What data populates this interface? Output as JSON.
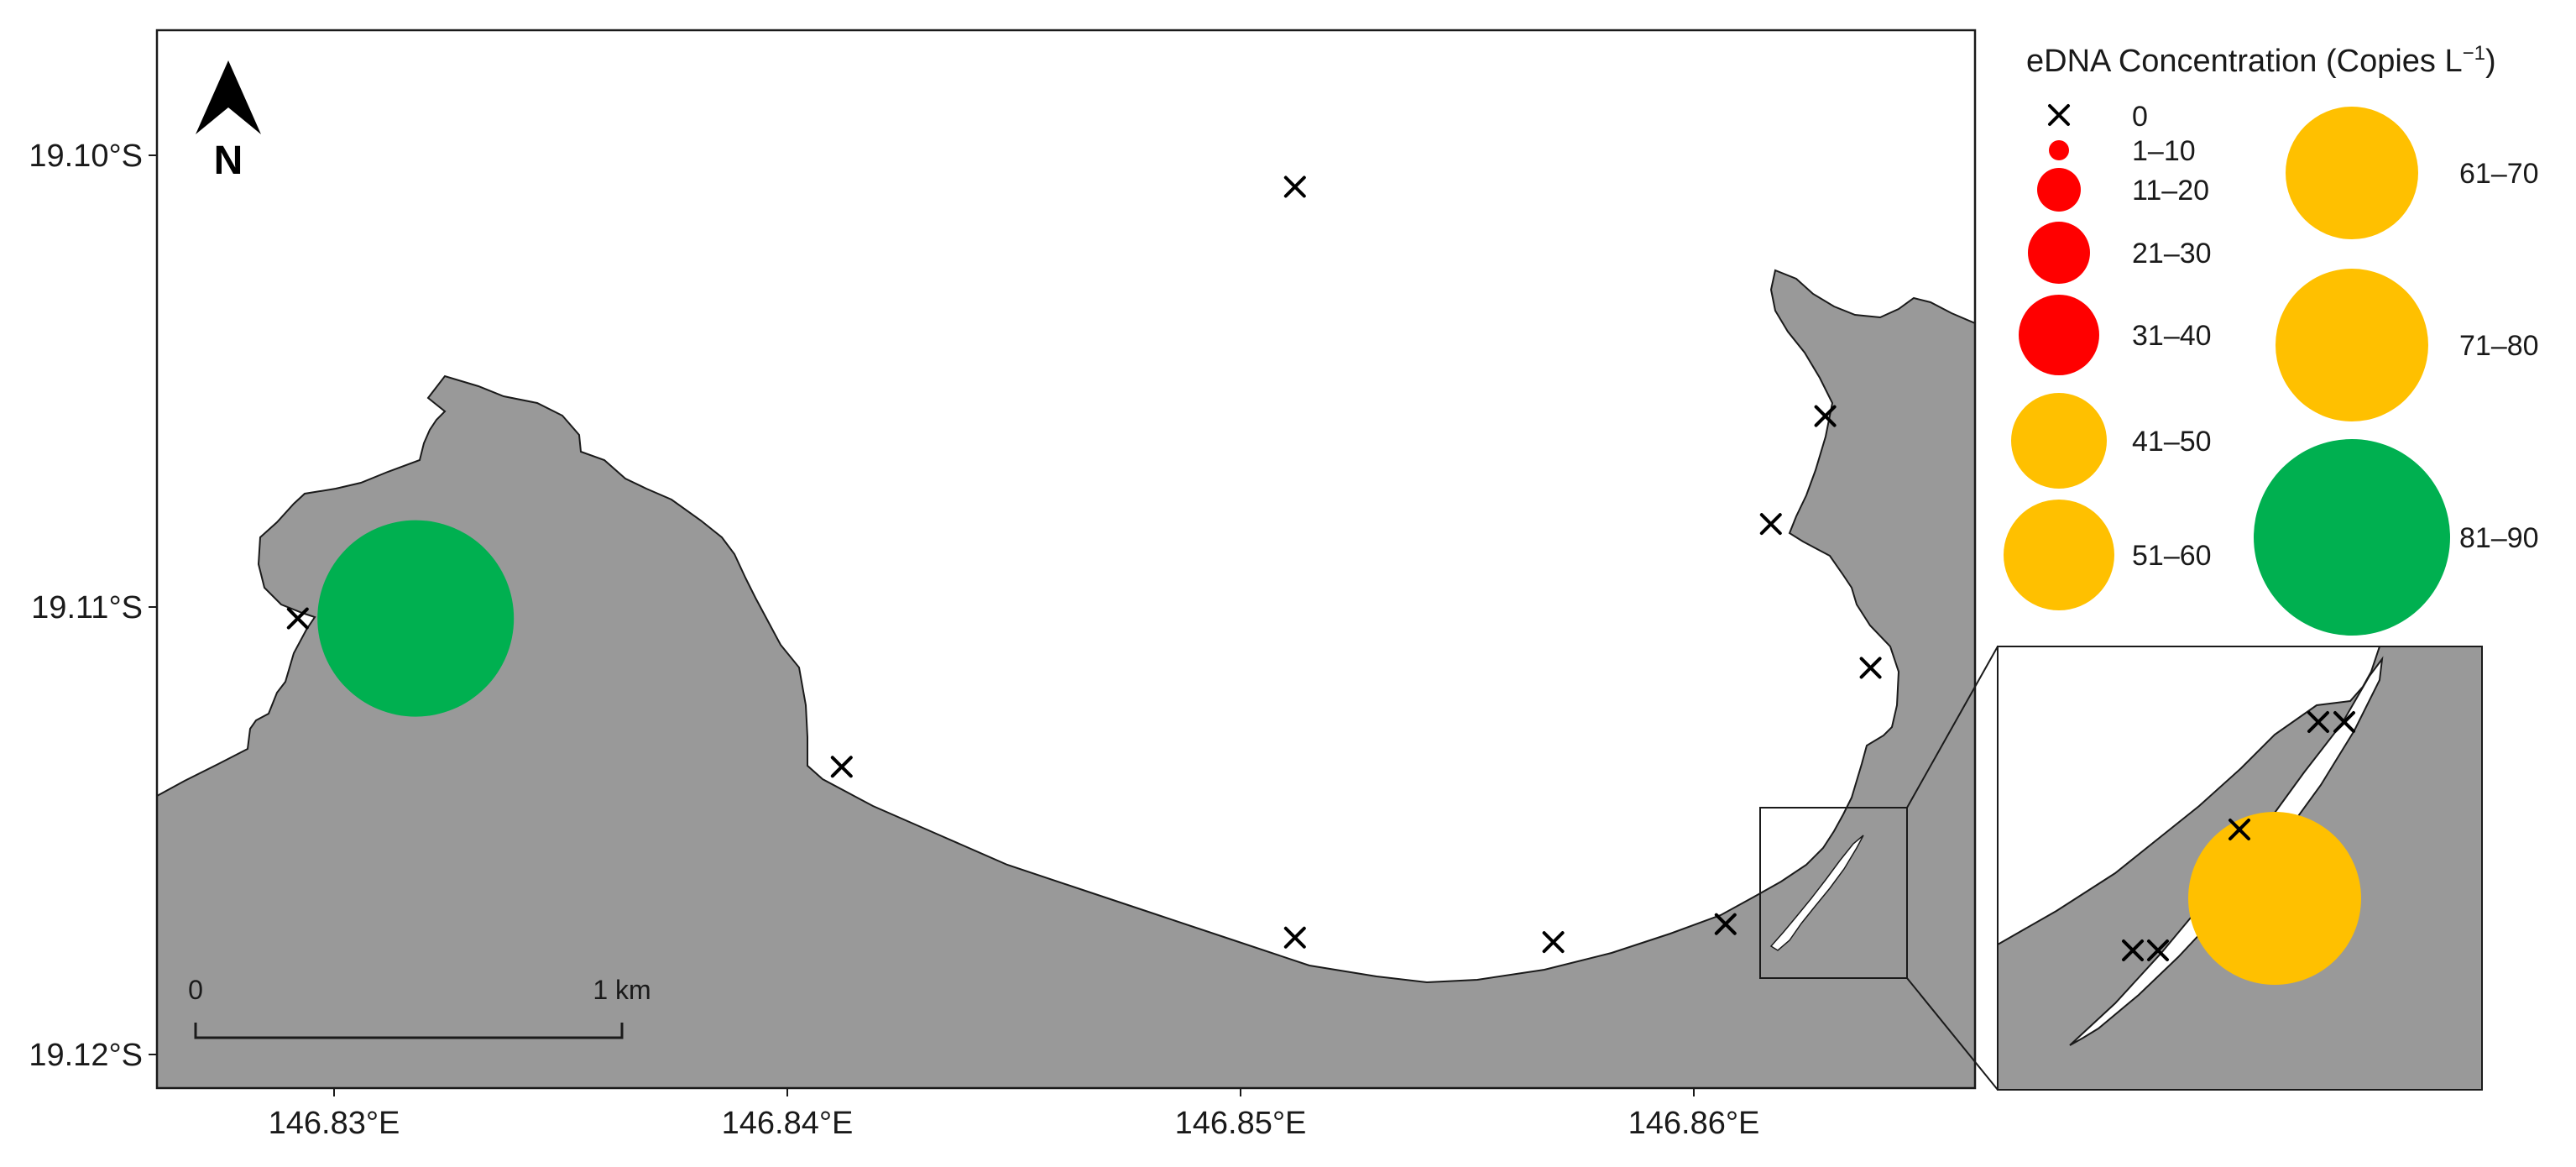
{
  "map": {
    "north_label": "N",
    "land_color": "#999999",
    "water_color": "#ffffff",
    "scalebar": {
      "start_label": "0",
      "end_label": "1 km"
    }
  },
  "axes": {
    "x_ticks": [
      "146.83°E",
      "146.84°E",
      "146.85°E",
      "146.86°E"
    ],
    "y_ticks": [
      "19.10°S",
      "19.11°S",
      "19.12°S"
    ]
  },
  "legend": {
    "title_main": "eDNA Concentration (Copies L",
    "title_sup": "−1",
    "title_end": ")",
    "zero_label": "0",
    "classes": [
      {
        "label": "1–10",
        "color": "#ff0000"
      },
      {
        "label": "11–20",
        "color": "#ff0000"
      },
      {
        "label": "21–30",
        "color": "#ff0000"
      },
      {
        "label": "31–40",
        "color": "#ff0000"
      },
      {
        "label": "41–50",
        "color": "#ffc000"
      },
      {
        "label": "51–60",
        "color": "#ffc000"
      },
      {
        "label": "61–70",
        "color": "#ffc000"
      },
      {
        "label": "71–80",
        "color": "#ffc000"
      },
      {
        "label": "81–90",
        "color": "#00b050"
      }
    ]
  },
  "samples": {
    "detections": [
      {
        "lon": 146.8318,
        "lat": -19.1103,
        "class": "81–90",
        "color": "#00b050"
      }
    ],
    "zero_sites": [
      {
        "lon": 146.8292,
        "lat": -19.1103
      },
      {
        "lon": 146.8412,
        "lat": -19.1136
      },
      {
        "lon": 146.8512,
        "lat": -19.1007
      },
      {
        "lon": 146.8512,
        "lat": -19.1174
      },
      {
        "lon": 146.8569,
        "lat": -19.1175
      },
      {
        "lon": 146.8607,
        "lat": -19.1171
      },
      {
        "lon": 146.8617,
        "lat": -19.1082
      },
      {
        "lon": 146.8629,
        "lat": -19.1058
      },
      {
        "lon": 146.8639,
        "lat": -19.1114
      }
    ],
    "inset_detections": [
      {
        "class": "61–70",
        "color": "#ffc000"
      }
    ]
  }
}
